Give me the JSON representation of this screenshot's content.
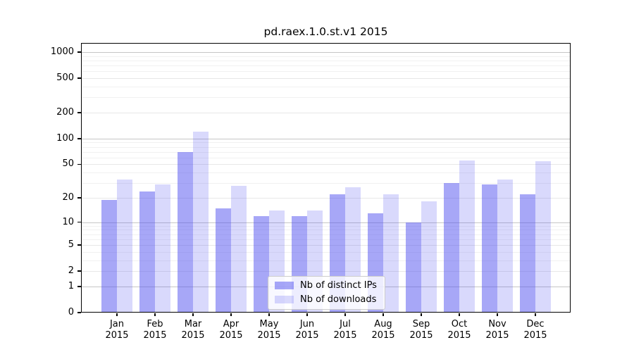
{
  "window": {
    "title": "pd.raex.1.0.st.v1 2015"
  },
  "chart_data": {
    "type": "bar",
    "title": "pd.raex.1.0.st.v1 2015",
    "xlabel": "",
    "ylabel": "",
    "categories": [
      "Jan 2015",
      "Feb 2015",
      "Mar 2015",
      "Apr 2015",
      "May 2015",
      "Jun 2015",
      "Jul 2015",
      "Aug 2015",
      "Sep 2015",
      "Oct 2015",
      "Nov 2015",
      "Dec 2015"
    ],
    "series": [
      {
        "name": "Nb of distinct IPs",
        "color": "rgba(80,80,240,0.5)",
        "values": [
          19,
          24,
          70,
          15,
          12,
          12,
          22,
          13,
          10,
          30,
          29,
          22
        ]
      },
      {
        "name": "Nb of downloads",
        "color": "rgba(80,80,240,0.22)",
        "values": [
          33,
          29,
          120,
          28,
          14,
          14,
          27,
          22,
          18,
          55,
          33,
          54
        ]
      }
    ],
    "yscale": "log1p",
    "ylim": [
      0,
      1270
    ],
    "yticks": [
      0,
      1,
      2,
      5,
      10,
      20,
      50,
      100,
      200,
      500,
      1000
    ],
    "yticks_minor": [
      3,
      4,
      6,
      7,
      8,
      9,
      30,
      40,
      60,
      70,
      80,
      90,
      300,
      400,
      600,
      700,
      800,
      900
    ],
    "grid": true,
    "legend_position": "lower-center",
    "colors": {
      "bar_strong": "rgba(80,80,240,0.5)",
      "bar_light": "rgba(80,80,240,0.22)",
      "grid_decade": "#c6c6c6",
      "grid_labeled": "#e7e7e7",
      "grid_minor": "#f1f1f1",
      "axis": "#000000",
      "legend_border": "#cccccc"
    }
  }
}
